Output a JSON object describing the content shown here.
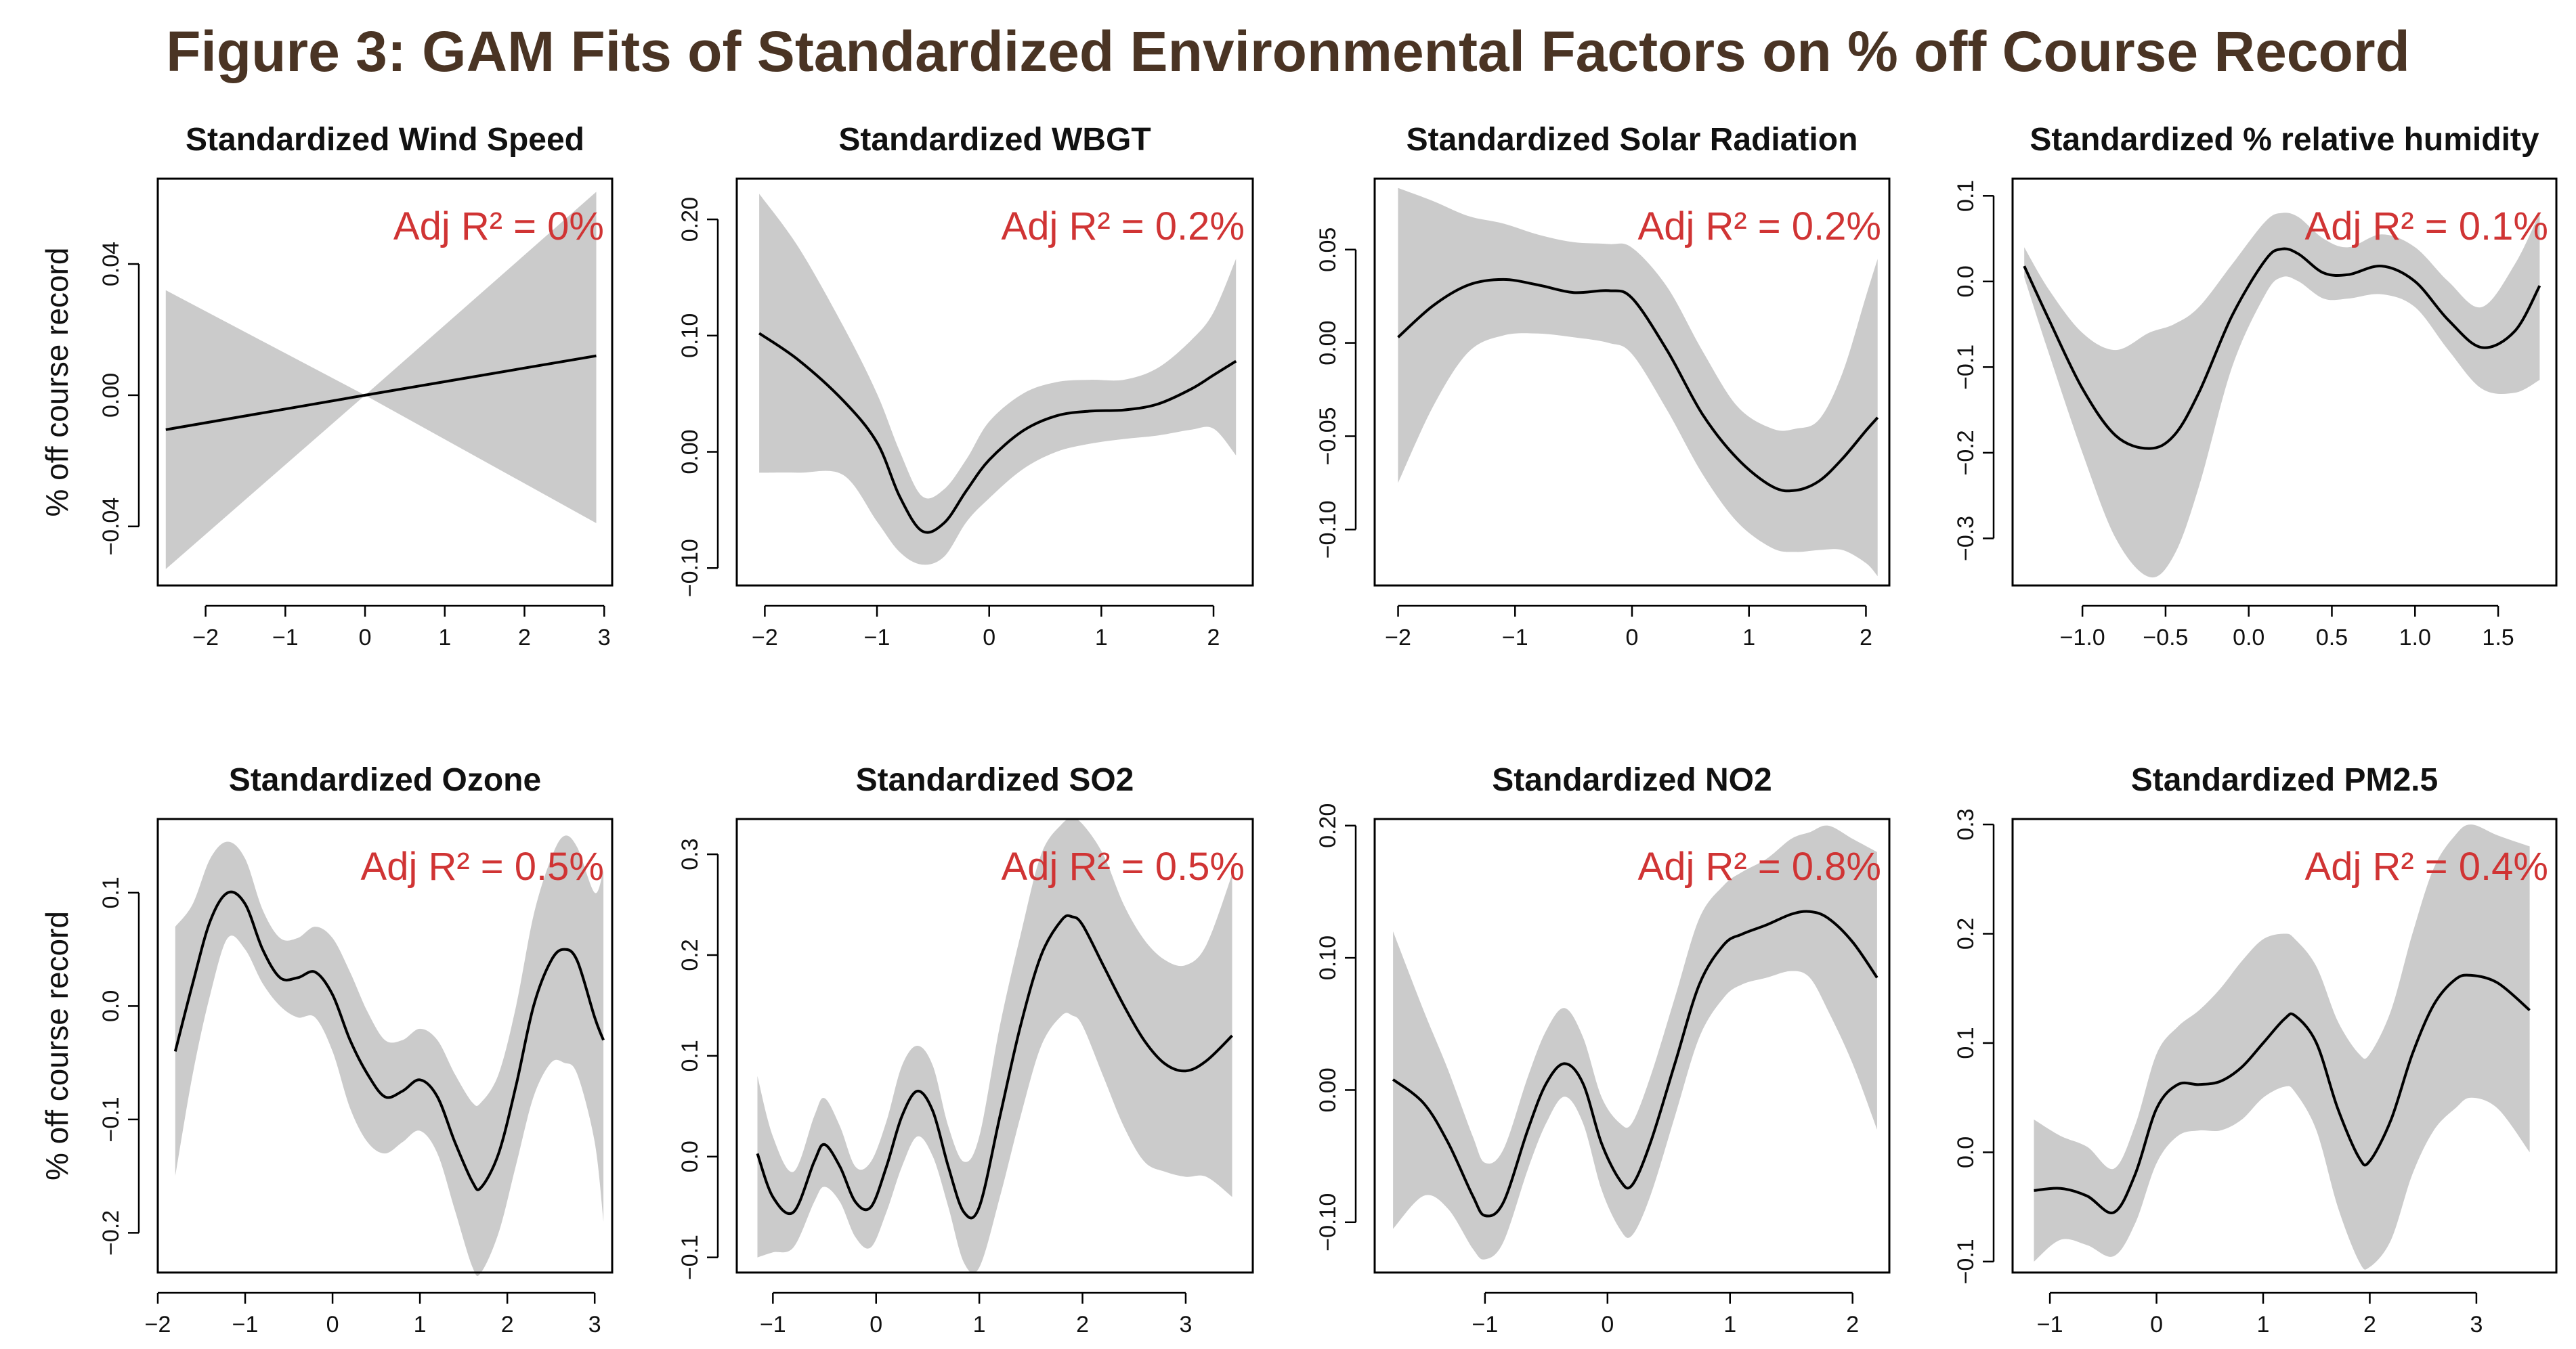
{
  "figure_title": "Figure 3: GAM Fits of Standardized Environmental Factors on % off Course Record",
  "ylabel": "% off course record",
  "colors": {
    "band": "#cbcbcb",
    "line": "#000000",
    "r2": "#d03434",
    "title": "#4a3424"
  },
  "chart_data": [
    {
      "type": "line",
      "title": "Standardized Wind Speed",
      "annotation": "Adj R² = 0%",
      "xlim": [
        -2.6,
        3.1
      ],
      "ylim": [
        -0.058,
        0.066
      ],
      "xticks": [
        -2,
        -1,
        0,
        1,
        2,
        3
      ],
      "xticklabels": [
        "−2",
        "−1",
        "0",
        "1",
        "2",
        "3"
      ],
      "yticks": [
        -0.04,
        0.0,
        0.04
      ],
      "yticklabels": [
        "−0.04",
        "0.00",
        "0.04"
      ],
      "x": [
        -2.5,
        0.0,
        2.9
      ],
      "fit": [
        -0.0105,
        0.0,
        0.012
      ],
      "lower": [
        -0.053,
        0.0,
        -0.039
      ],
      "upper": [
        0.032,
        0.0,
        0.062
      ]
    },
    {
      "type": "line",
      "title": "Standardized WBGT",
      "annotation": "Adj R² = 0.2%",
      "xlim": [
        -2.25,
        2.35
      ],
      "ylim": [
        -0.115,
        0.235
      ],
      "xticks": [
        -2,
        -1,
        0,
        1,
        2
      ],
      "xticklabels": [
        "−2",
        "−1",
        "0",
        "1",
        "2"
      ],
      "yticks": [
        -0.1,
        0.0,
        0.1,
        0.2
      ],
      "yticklabels": [
        "−0.10",
        "0.00",
        "0.10",
        "0.20"
      ],
      "x": [
        -2.05,
        -1.7,
        -1.3,
        -1.0,
        -0.8,
        -0.6,
        -0.4,
        -0.2,
        0.0,
        0.3,
        0.6,
        0.9,
        1.2,
        1.5,
        1.8,
        2.0,
        2.2
      ],
      "fit": [
        0.102,
        0.079,
        0.044,
        0.008,
        -0.038,
        -0.068,
        -0.061,
        -0.033,
        -0.007,
        0.018,
        0.031,
        0.035,
        0.036,
        0.041,
        0.054,
        0.066,
        0.078
      ],
      "lower": [
        -0.018,
        -0.018,
        -0.02,
        -0.06,
        -0.086,
        -0.097,
        -0.09,
        -0.06,
        -0.04,
        -0.015,
        0.0,
        0.007,
        0.011,
        0.014,
        0.019,
        0.02,
        -0.003
      ],
      "upper": [
        0.222,
        0.176,
        0.108,
        0.05,
        0.001,
        -0.038,
        -0.032,
        -0.006,
        0.026,
        0.05,
        0.06,
        0.062,
        0.062,
        0.072,
        0.096,
        0.12,
        0.166
      ]
    },
    {
      "type": "line",
      "title": "Standardized Solar Radiation",
      "annotation": "Adj R² = 0.2%",
      "xlim": [
        -2.2,
        2.2
      ],
      "ylim": [
        -0.13,
        0.088
      ],
      "xticks": [
        -2,
        -1,
        0,
        1,
        2
      ],
      "xticklabels": [
        "−2",
        "−1",
        "0",
        "1",
        "2"
      ],
      "yticks": [
        -0.1,
        -0.05,
        0.0,
        0.05
      ],
      "yticklabels": [
        "−0.10",
        "−0.05",
        "0.00",
        "0.05"
      ],
      "x": [
        -2.0,
        -1.7,
        -1.4,
        -1.1,
        -0.8,
        -0.5,
        -0.2,
        0.0,
        0.3,
        0.6,
        0.9,
        1.2,
        1.4,
        1.6,
        1.8,
        2.0,
        2.1
      ],
      "fit": [
        0.003,
        0.02,
        0.031,
        0.034,
        0.031,
        0.027,
        0.028,
        0.024,
        -0.004,
        -0.038,
        -0.062,
        -0.077,
        -0.079,
        -0.074,
        -0.062,
        -0.047,
        -0.04
      ],
      "lower": [
        -0.075,
        -0.034,
        -0.005,
        0.004,
        0.005,
        0.003,
        0.0,
        -0.006,
        -0.036,
        -0.07,
        -0.096,
        -0.11,
        -0.112,
        -0.111,
        -0.111,
        -0.118,
        -0.125
      ],
      "upper": [
        0.083,
        0.076,
        0.068,
        0.064,
        0.058,
        0.054,
        0.053,
        0.051,
        0.03,
        -0.004,
        -0.034,
        -0.046,
        -0.046,
        -0.041,
        -0.016,
        0.025,
        0.045
      ]
    },
    {
      "type": "line",
      "title": "Standardized % relative humidity",
      "annotation": "Adj R² = 0.1%",
      "xlim": [
        -1.42,
        1.85
      ],
      "ylim": [
        -0.355,
        0.12
      ],
      "xticks": [
        -1.0,
        -0.5,
        0.0,
        0.5,
        1.0,
        1.5
      ],
      "xticklabels": [
        "−1.0",
        "−0.5",
        "0.0",
        "0.5",
        "1.0",
        "1.5"
      ],
      "yticks": [
        -0.3,
        -0.2,
        -0.1,
        0.0,
        0.1
      ],
      "yticklabels": [
        "−0.3",
        "−0.2",
        "−0.1",
        "0.0",
        "0.1"
      ],
      "x": [
        -1.35,
        -1.2,
        -1.0,
        -0.8,
        -0.6,
        -0.45,
        -0.3,
        -0.1,
        0.1,
        0.2,
        0.3,
        0.45,
        0.6,
        0.8,
        1.0,
        1.2,
        1.4,
        1.6,
        1.75
      ],
      "fit": [
        0.018,
        -0.045,
        -0.125,
        -0.18,
        -0.195,
        -0.18,
        -0.13,
        -0.04,
        0.025,
        0.038,
        0.032,
        0.01,
        0.008,
        0.018,
        0.0,
        -0.045,
        -0.077,
        -0.058,
        -0.005
      ],
      "lower": [
        0.005,
        -0.085,
        -0.2,
        -0.3,
        -0.345,
        -0.32,
        -0.24,
        -0.1,
        -0.015,
        0.005,
        0.0,
        -0.02,
        -0.02,
        -0.015,
        -0.03,
        -0.08,
        -0.125,
        -0.13,
        -0.115
      ],
      "upper": [
        0.04,
        -0.01,
        -0.06,
        -0.08,
        -0.06,
        -0.05,
        -0.03,
        0.02,
        0.07,
        0.08,
        0.075,
        0.05,
        0.04,
        0.055,
        0.04,
        0.0,
        -0.03,
        0.02,
        0.08
      ]
    },
    {
      "type": "line",
      "title": "Standardized Ozone",
      "annotation": "Adj R² = 0.5%",
      "xlim": [
        -2.0,
        3.2
      ],
      "ylim": [
        -0.235,
        0.165
      ],
      "xticks": [
        -2,
        -1,
        0,
        1,
        2,
        3
      ],
      "xticklabels": [
        "−2",
        "−1",
        "0",
        "1",
        "2",
        "3"
      ],
      "yticks": [
        -0.2,
        -0.1,
        0.0,
        0.1
      ],
      "yticklabels": [
        "−0.2",
        "−0.1",
        "0.0",
        "0.1"
      ],
      "x": [
        -1.8,
        -1.6,
        -1.4,
        -1.2,
        -1.0,
        -0.8,
        -0.6,
        -0.4,
        -0.2,
        0.0,
        0.2,
        0.4,
        0.6,
        0.8,
        1.0,
        1.2,
        1.4,
        1.6,
        1.7,
        1.9,
        2.1,
        2.3,
        2.5,
        2.65,
        2.8,
        3.0,
        3.1
      ],
      "fit": [
        -0.04,
        0.02,
        0.075,
        0.1,
        0.09,
        0.05,
        0.025,
        0.025,
        0.03,
        0.01,
        -0.03,
        -0.06,
        -0.08,
        -0.075,
        -0.065,
        -0.08,
        -0.12,
        -0.155,
        -0.16,
        -0.13,
        -0.07,
        0.0,
        0.04,
        0.05,
        0.04,
        -0.01,
        -0.03
      ],
      "lower": [
        -0.15,
        -0.06,
        0.01,
        0.06,
        0.05,
        0.02,
        0.0,
        -0.01,
        -0.01,
        -0.04,
        -0.09,
        -0.12,
        -0.13,
        -0.12,
        -0.11,
        -0.13,
        -0.18,
        -0.23,
        -0.235,
        -0.2,
        -0.14,
        -0.08,
        -0.05,
        -0.05,
        -0.06,
        -0.12,
        -0.19
      ],
      "upper": [
        0.07,
        0.09,
        0.13,
        0.145,
        0.13,
        0.085,
        0.06,
        0.06,
        0.07,
        0.06,
        0.03,
        -0.005,
        -0.03,
        -0.03,
        -0.02,
        -0.03,
        -0.06,
        -0.085,
        -0.085,
        -0.06,
        0.0,
        0.08,
        0.13,
        0.15,
        0.14,
        0.1,
        0.12
      ]
    },
    {
      "type": "line",
      "title": "Standardized SO2",
      "annotation": "Adj R² = 0.5%",
      "xlim": [
        -1.35,
        3.65
      ],
      "ylim": [
        -0.115,
        0.335
      ],
      "xticks": [
        -1,
        0,
        1,
        2,
        3
      ],
      "xticklabels": [
        "−1",
        "0",
        "1",
        "2",
        "3"
      ],
      "yticks": [
        -0.1,
        0.0,
        0.1,
        0.2,
        0.3
      ],
      "yticklabels": [
        "−0.1",
        "0.0",
        "0.1",
        "0.2",
        "0.3"
      ],
      "x": [
        -1.15,
        -1.0,
        -0.8,
        -0.6,
        -0.5,
        -0.35,
        -0.2,
        -0.05,
        0.1,
        0.25,
        0.4,
        0.55,
        0.7,
        0.85,
        1.0,
        1.2,
        1.4,
        1.6,
        1.8,
        1.9,
        2.0,
        2.2,
        2.4,
        2.6,
        2.8,
        3.0,
        3.2,
        3.45
      ],
      "fit": [
        0.003,
        -0.04,
        -0.055,
        -0.005,
        0.012,
        -0.01,
        -0.045,
        -0.05,
        -0.01,
        0.04,
        0.065,
        0.045,
        -0.01,
        -0.055,
        -0.05,
        0.04,
        0.13,
        0.2,
        0.235,
        0.238,
        0.23,
        0.19,
        0.15,
        0.115,
        0.092,
        0.085,
        0.095,
        0.12
      ],
      "lower": [
        -0.1,
        -0.095,
        -0.09,
        -0.045,
        -0.03,
        -0.045,
        -0.08,
        -0.09,
        -0.055,
        -0.01,
        0.02,
        0.0,
        -0.05,
        -0.105,
        -0.11,
        -0.04,
        0.04,
        0.11,
        0.14,
        0.14,
        0.13,
        0.08,
        0.03,
        -0.005,
        -0.015,
        -0.02,
        -0.02,
        -0.04
      ],
      "upper": [
        0.08,
        0.02,
        -0.015,
        0.04,
        0.058,
        0.03,
        -0.01,
        -0.005,
        0.035,
        0.09,
        0.11,
        0.09,
        0.03,
        -0.005,
        0.02,
        0.13,
        0.22,
        0.3,
        0.33,
        0.335,
        0.33,
        0.3,
        0.25,
        0.215,
        0.195,
        0.19,
        0.21,
        0.28
      ]
    },
    {
      "type": "line",
      "title": "Standardized NO2",
      "annotation": "Adj R² = 0.8%",
      "xlim": [
        -1.9,
        2.3
      ],
      "ylim": [
        -0.138,
        0.205
      ],
      "xticks": [
        -1,
        0,
        1,
        2
      ],
      "xticklabels": [
        "−1",
        "0",
        "1",
        "2"
      ],
      "yticks": [
        -0.1,
        0.0,
        0.1,
        0.2
      ],
      "yticklabels": [
        "−0.10",
        "0.00",
        "0.10",
        "0.20"
      ],
      "x": [
        -1.75,
        -1.5,
        -1.3,
        -1.1,
        -1.0,
        -0.85,
        -0.65,
        -0.5,
        -0.35,
        -0.2,
        -0.05,
        0.1,
        0.2,
        0.35,
        0.55,
        0.75,
        0.95,
        1.1,
        1.3,
        1.5,
        1.65,
        1.8,
        2.0,
        2.2
      ],
      "fit": [
        0.008,
        -0.01,
        -0.04,
        -0.08,
        -0.095,
        -0.085,
        -0.03,
        0.005,
        0.02,
        0.005,
        -0.04,
        -0.068,
        -0.072,
        -0.04,
        0.02,
        0.08,
        0.11,
        0.118,
        0.125,
        0.133,
        0.135,
        0.13,
        0.112,
        0.085
      ],
      "lower": [
        -0.105,
        -0.08,
        -0.09,
        -0.12,
        -0.128,
        -0.115,
        -0.06,
        -0.025,
        -0.005,
        -0.025,
        -0.075,
        -0.105,
        -0.11,
        -0.08,
        -0.02,
        0.04,
        0.07,
        0.08,
        0.085,
        0.09,
        0.085,
        0.06,
        0.02,
        -0.03
      ],
      "upper": [
        0.12,
        0.06,
        0.015,
        -0.035,
        -0.055,
        -0.045,
        0.01,
        0.045,
        0.062,
        0.04,
        -0.005,
        -0.025,
        -0.025,
        0.01,
        0.07,
        0.13,
        0.155,
        0.165,
        0.175,
        0.19,
        0.195,
        0.2,
        0.19,
        0.18
      ]
    },
    {
      "type": "line",
      "title": "Standardized PM2.5",
      "annotation": "Adj R² = 0.4%",
      "xlim": [
        -1.35,
        3.75
      ],
      "ylim": [
        -0.11,
        0.305
      ],
      "xticks": [
        -1,
        0,
        1,
        2,
        3
      ],
      "xticklabels": [
        "−1",
        "0",
        "1",
        "2",
        "3"
      ],
      "yticks": [
        -0.1,
        0.0,
        0.1,
        0.2,
        0.3
      ],
      "yticklabels": [
        "−0.1",
        "0.0",
        "0.1",
        "0.2",
        "0.3"
      ],
      "x": [
        -1.15,
        -0.9,
        -0.65,
        -0.4,
        -0.2,
        0.0,
        0.2,
        0.4,
        0.6,
        0.8,
        1.0,
        1.2,
        1.3,
        1.5,
        1.7,
        1.9,
        2.0,
        2.2,
        2.4,
        2.6,
        2.8,
        2.95,
        3.2,
        3.5
      ],
      "fit": [
        -0.035,
        -0.033,
        -0.04,
        -0.055,
        -0.02,
        0.04,
        0.062,
        0.062,
        0.065,
        0.078,
        0.1,
        0.122,
        0.125,
        0.1,
        0.04,
        -0.005,
        -0.008,
        0.03,
        0.09,
        0.135,
        0.158,
        0.162,
        0.155,
        0.13
      ],
      "lower": [
        -0.1,
        -0.08,
        -0.085,
        -0.095,
        -0.065,
        -0.01,
        0.015,
        0.02,
        0.02,
        0.03,
        0.05,
        0.06,
        0.055,
        0.02,
        -0.05,
        -0.1,
        -0.105,
        -0.08,
        -0.02,
        0.02,
        0.04,
        0.05,
        0.04,
        0.0
      ],
      "upper": [
        0.03,
        0.015,
        0.005,
        -0.015,
        0.025,
        0.09,
        0.115,
        0.13,
        0.15,
        0.175,
        0.195,
        0.2,
        0.195,
        0.17,
        0.12,
        0.09,
        0.09,
        0.13,
        0.2,
        0.26,
        0.29,
        0.3,
        0.29,
        0.28
      ]
    }
  ]
}
